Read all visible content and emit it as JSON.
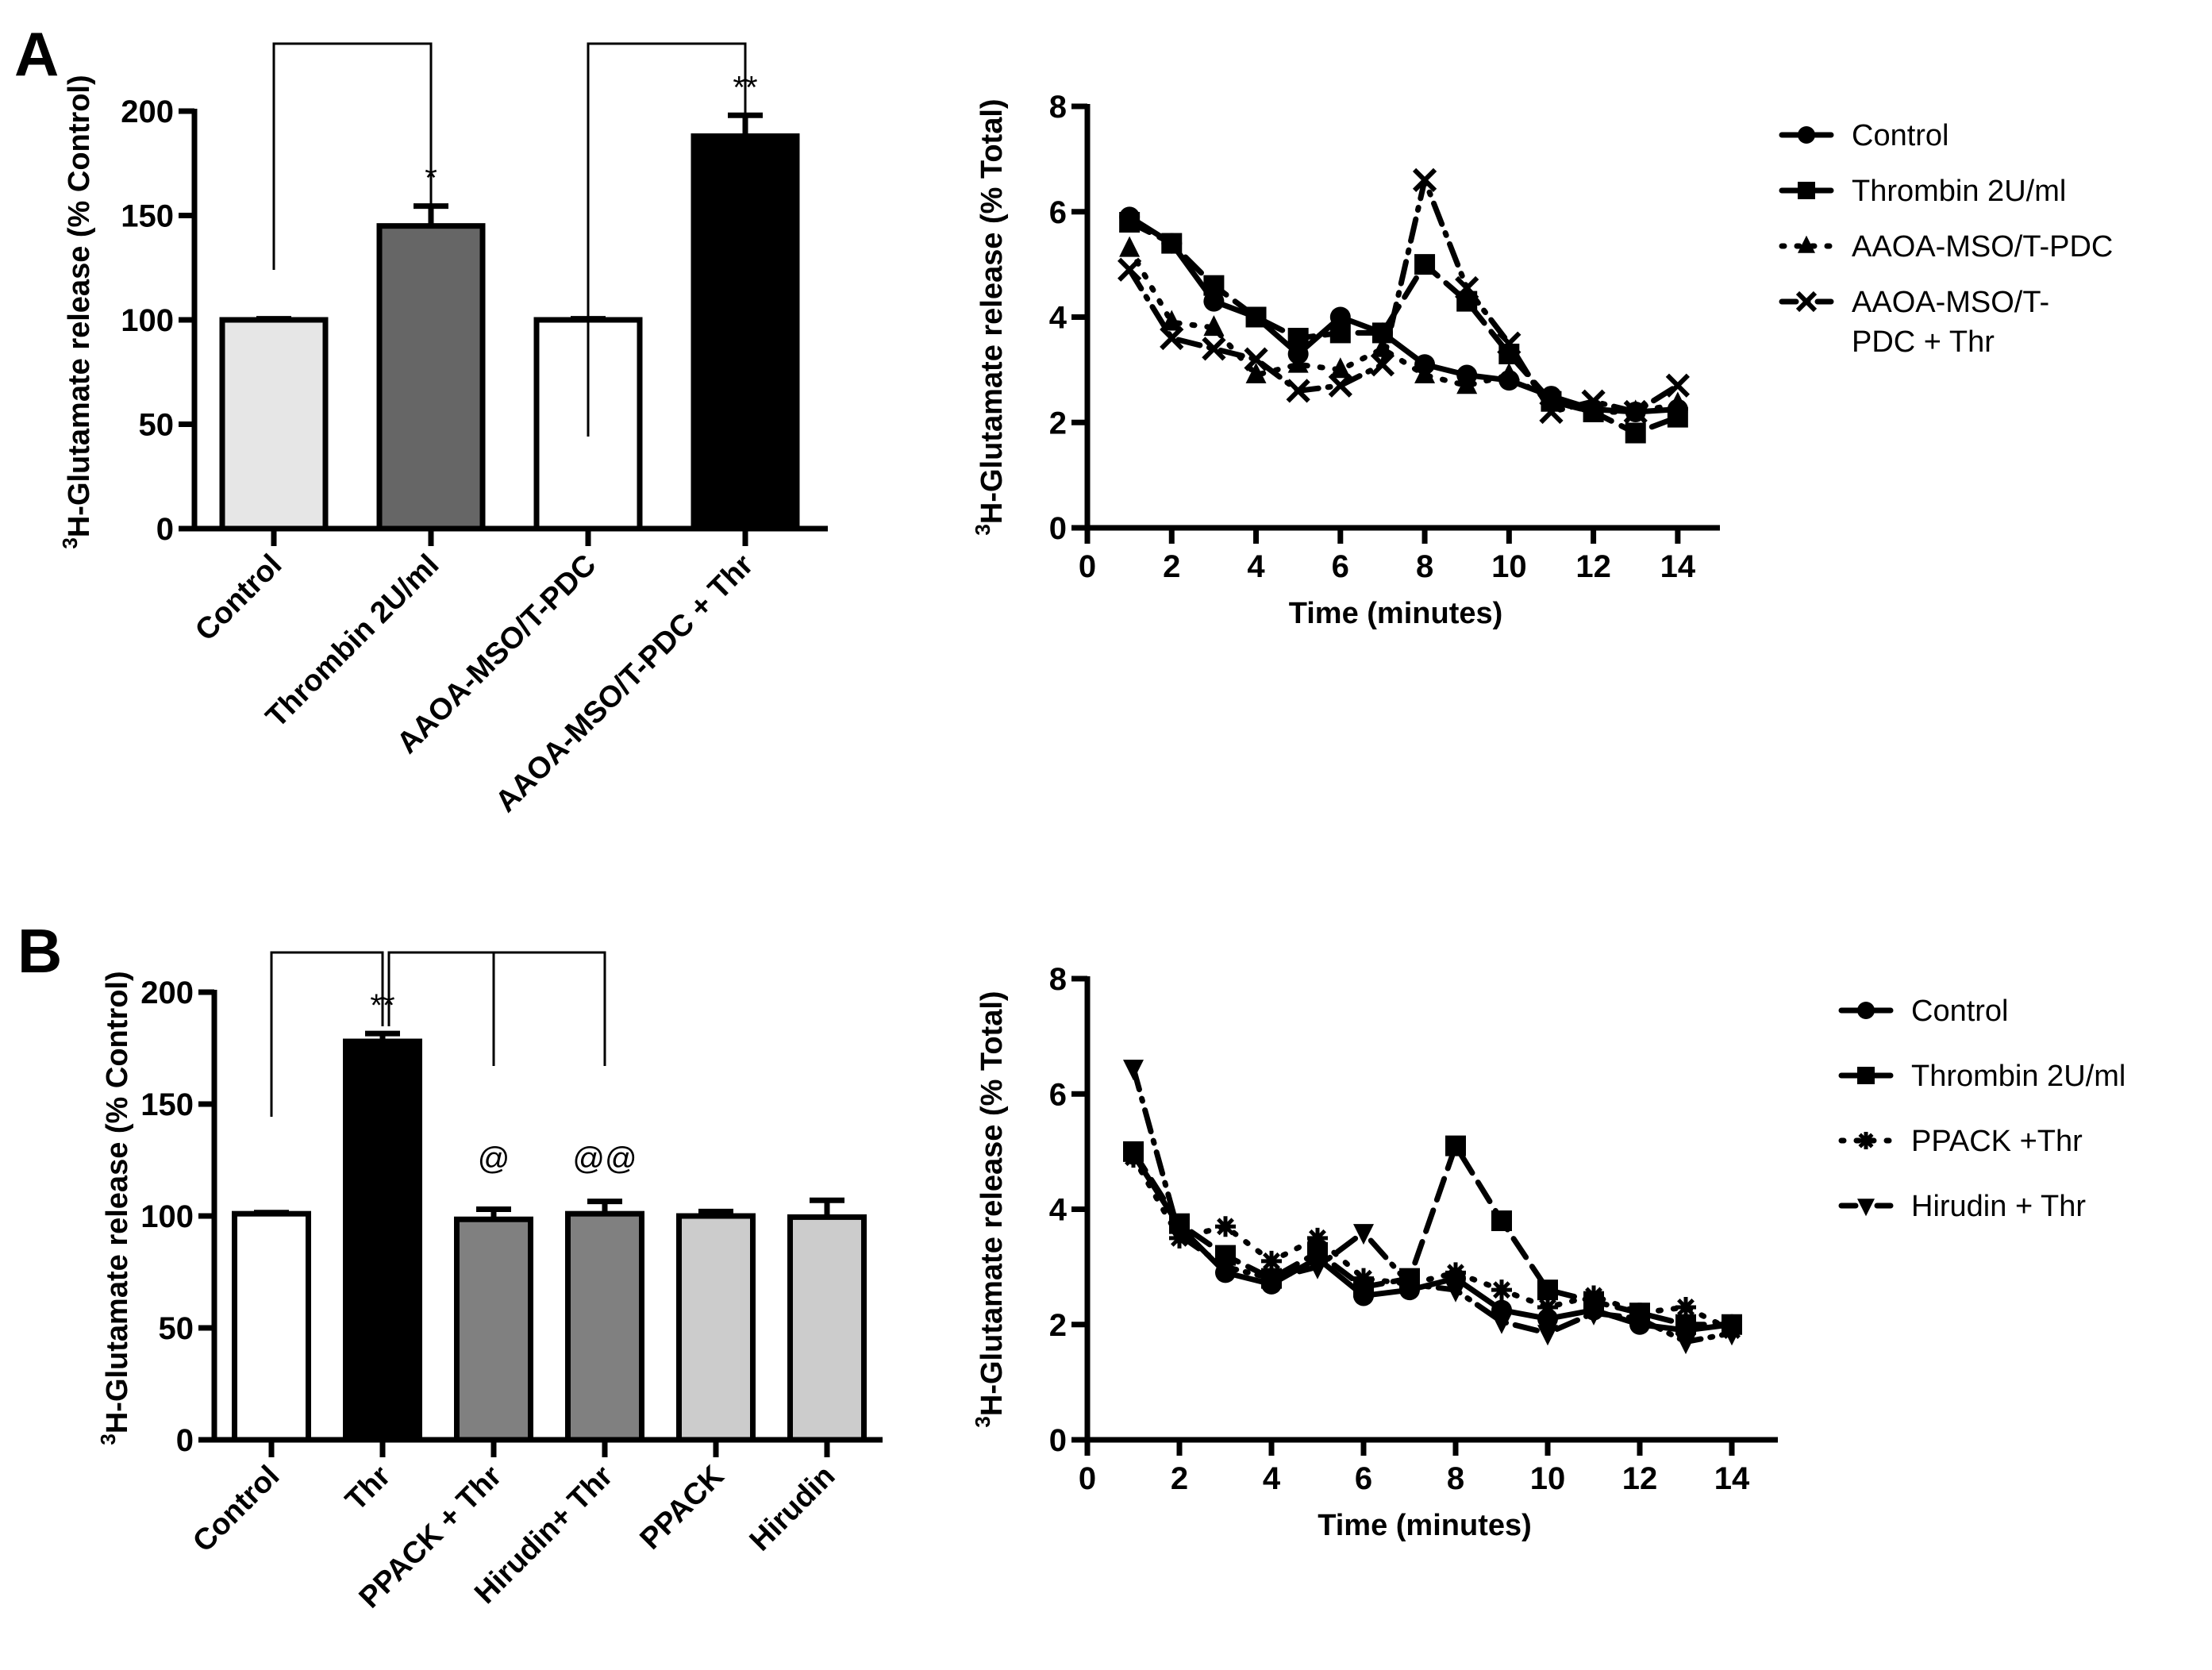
{
  "panels": {
    "a": "A",
    "b": "B"
  },
  "chart_data": [
    {
      "id": "A-bar",
      "type": "bar",
      "title": "",
      "xlabel": "",
      "ylabel": "3H-Glutamate release (% Control)",
      "ylabel_sup": "3",
      "ylabel_rest": "H-Glutamate release (%  Control)",
      "ylim": [
        0,
        200
      ],
      "yticks": [
        0,
        50,
        100,
        150,
        200
      ],
      "categories": [
        "Control",
        "Thrombin 2U/ml",
        "AAOA-MSO/T-PDC",
        "AAOA-MSO/T-PDC + Thr"
      ],
      "values": [
        100,
        145,
        100,
        188
      ],
      "errors": [
        0.5,
        9.5,
        0.5,
        10
      ],
      "colors": [
        "#e6e6e6",
        "#666666",
        "#ffffff",
        "#000000"
      ],
      "annotations": [
        {
          "bar": 1,
          "text": "*"
        },
        {
          "bar": 3,
          "text": "**"
        }
      ],
      "brackets": [
        [
          0,
          1
        ],
        [
          2,
          3
        ]
      ]
    },
    {
      "id": "A-line",
      "type": "line",
      "title": "",
      "xlabel": "Time (minutes)",
      "ylabel_sup": "3",
      "ylabel_rest": "H-Glutamate release (% Total)",
      "xlim": [
        0,
        15
      ],
      "ylim": [
        0,
        8
      ],
      "xticks": [
        0,
        2,
        4,
        6,
        8,
        10,
        12,
        14
      ],
      "yticks": [
        0,
        2,
        4,
        6,
        8
      ],
      "x": [
        1,
        2,
        3,
        4,
        5,
        6,
        7,
        8,
        9,
        10,
        11,
        12,
        13,
        14
      ],
      "legend_position": "right",
      "series": [
        {
          "name": "Control",
          "marker": "circle",
          "dash": "solid",
          "values": [
            5.9,
            5.4,
            4.3,
            4.0,
            3.3,
            4.0,
            3.7,
            3.1,
            2.9,
            2.8,
            2.5,
            2.25,
            2.2,
            2.25
          ]
        },
        {
          "name": "Thrombin 2U/ml",
          "marker": "square",
          "dash": "dash",
          "values": [
            5.8,
            5.4,
            4.6,
            4.0,
            3.6,
            3.7,
            3.7,
            5.0,
            4.3,
            3.3,
            2.4,
            2.2,
            1.8,
            2.1
          ]
        },
        {
          "name": "AAOA-MSO/T-PDC",
          "marker": "triangle",
          "dash": "dot",
          "values": [
            5.3,
            3.9,
            3.8,
            2.9,
            3.1,
            3.0,
            3.4,
            2.9,
            2.7,
            2.9,
            2.4,
            2.2,
            2.2,
            2.35
          ]
        },
        {
          "name": "AAOA-MSO/T-PDC + Thr",
          "legend_lines": [
            "AAOA-MSO/T-",
            "PDC + Thr"
          ],
          "marker": "x",
          "dash": "dashdot",
          "values": [
            4.9,
            3.6,
            3.4,
            3.2,
            2.6,
            2.7,
            3.1,
            6.6,
            4.55,
            3.5,
            2.2,
            2.4,
            2.2,
            2.7
          ]
        }
      ]
    },
    {
      "id": "B-bar",
      "type": "bar",
      "title": "",
      "xlabel": "",
      "ylabel_sup": "3",
      "ylabel_rest": "H-Glutamate release (% Control)",
      "ylim": [
        0,
        200
      ],
      "yticks": [
        0,
        50,
        100,
        150,
        200
      ],
      "categories": [
        "Control",
        "Thr",
        "PPACK + Thr",
        "Hirudin+ Thr",
        "PPACK",
        "Hirudin"
      ],
      "values": [
        101,
        178,
        98.5,
        101,
        100,
        99.5
      ],
      "errors": [
        0.5,
        3.5,
        4.5,
        5.5,
        2,
        7.5
      ],
      "colors": [
        "#ffffff",
        "#000000",
        "#808080",
        "#808080",
        "#cccccc",
        "#cccccc"
      ],
      "annotations": [
        {
          "bar": 1,
          "text": "**"
        },
        {
          "bar": 2,
          "text": "@"
        },
        {
          "bar": 3,
          "text": "@@"
        }
      ],
      "brackets": [
        [
          0,
          1
        ],
        [
          1,
          2
        ],
        [
          1,
          3
        ]
      ]
    },
    {
      "id": "B-line",
      "type": "line",
      "title": "",
      "xlabel": "Time (minutes)",
      "ylabel_sup": "3",
      "ylabel_rest": "H-Glutamate release (% Total)",
      "xlim": [
        0,
        15
      ],
      "ylim": [
        0,
        8
      ],
      "xticks": [
        0,
        2,
        4,
        6,
        8,
        10,
        12,
        14
      ],
      "yticks": [
        0,
        2,
        4,
        6,
        8
      ],
      "x": [
        1,
        2,
        3,
        4,
        5,
        6,
        7,
        8,
        9,
        10,
        11,
        12,
        13,
        14
      ],
      "legend_position": "right",
      "series": [
        {
          "name": "Control",
          "marker": "circle",
          "dash": "solid",
          "values": [
            4.95,
            3.7,
            2.9,
            2.7,
            3.15,
            2.5,
            2.6,
            2.8,
            2.25,
            2.1,
            2.25,
            2.0,
            1.9,
            2.0
          ]
        },
        {
          "name": "Thrombin 2U/ml",
          "marker": "square",
          "dash": "dash",
          "values": [
            5.0,
            3.75,
            3.2,
            2.8,
            3.25,
            2.65,
            2.8,
            5.1,
            3.8,
            2.6,
            2.4,
            2.2,
            2.0,
            2.0
          ]
        },
        {
          "name": "PPACK +Thr",
          "marker": "asterisk",
          "dash": "dot",
          "values": [
            4.9,
            3.5,
            3.7,
            3.1,
            3.5,
            2.8,
            2.7,
            2.9,
            2.6,
            2.3,
            2.5,
            2.2,
            2.3,
            1.9
          ]
        },
        {
          "name": "Hirudin + Thr",
          "marker": "triangle-down",
          "dash": "dashdot",
          "values": [
            6.45,
            3.55,
            3.0,
            2.8,
            3.0,
            3.6,
            2.7,
            2.6,
            2.05,
            1.85,
            2.2,
            2.1,
            1.7,
            1.85
          ]
        }
      ]
    }
  ]
}
